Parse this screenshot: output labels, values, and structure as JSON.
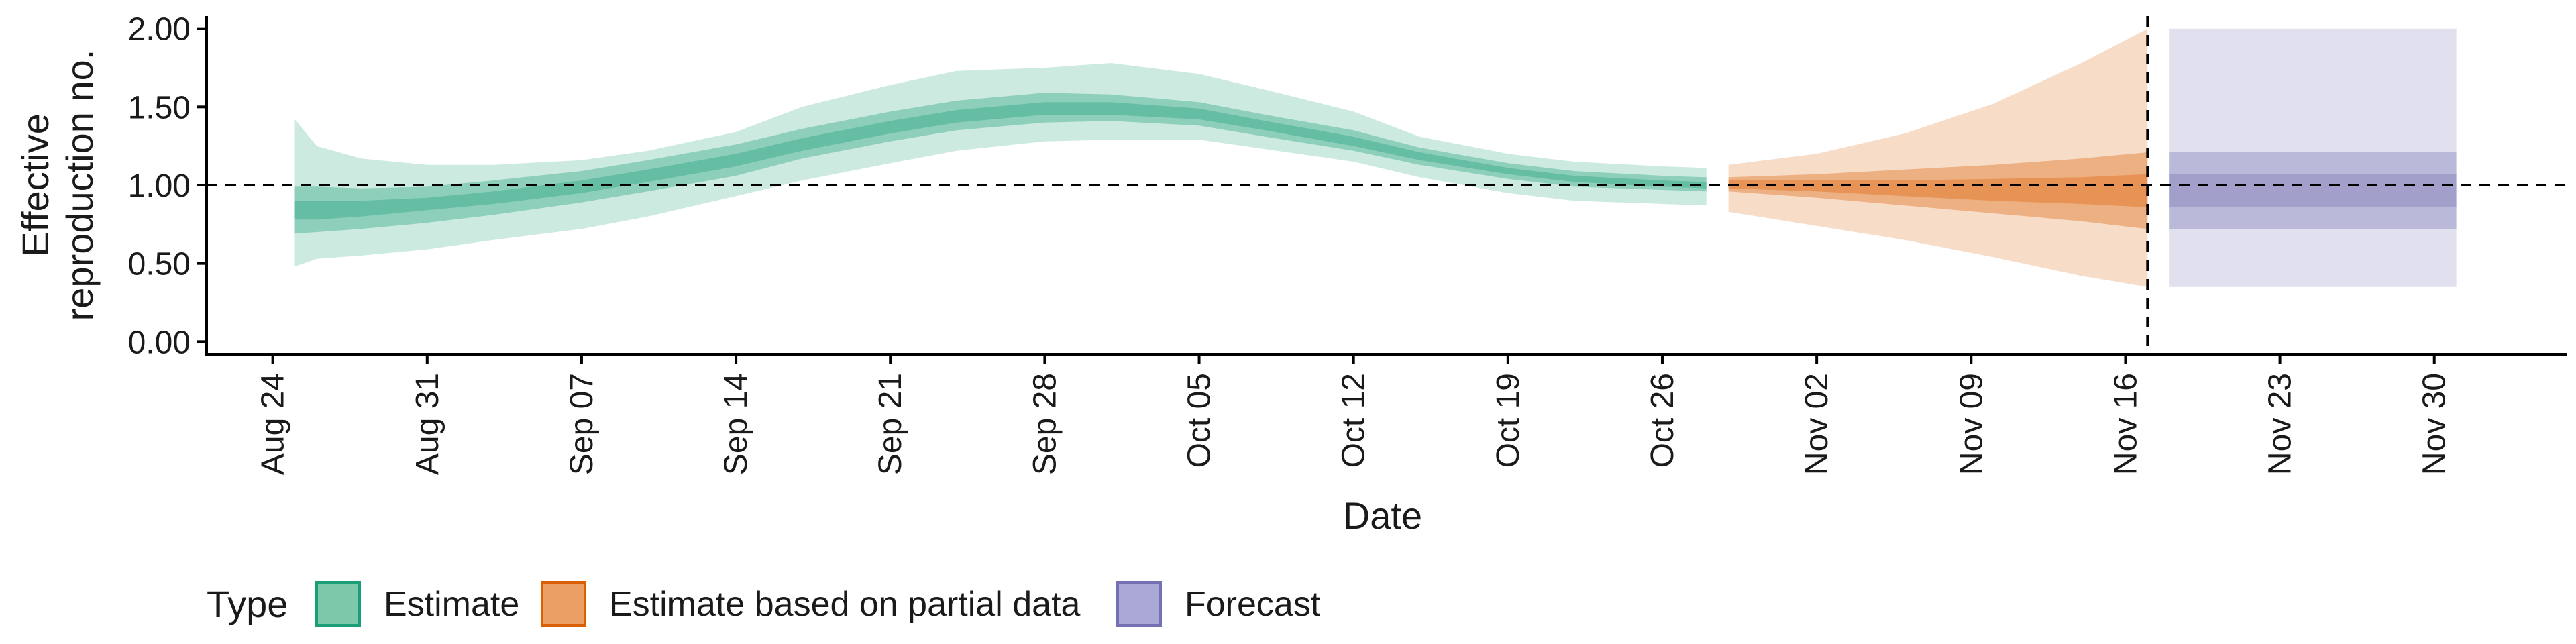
{
  "chart_data": {
    "type": "area",
    "title": "",
    "xlabel": "Date",
    "ylabel_lines": [
      "Effective",
      "reproduction no."
    ],
    "x_range": [
      "2020-08-21",
      "2020-12-06"
    ],
    "ylim": [
      -0.08,
      2.08
    ],
    "y_ticks": [
      "0.00",
      "0.50",
      "1.00",
      "1.50",
      "2.00"
    ],
    "x_tick_labels": [
      {
        "date": "2020-08-24",
        "label": "Aug 24"
      },
      {
        "date": "2020-08-31",
        "label": "Aug 31"
      },
      {
        "date": "2020-09-07",
        "label": "Sep 07"
      },
      {
        "date": "2020-09-14",
        "label": "Sep 14"
      },
      {
        "date": "2020-09-21",
        "label": "Sep 21"
      },
      {
        "date": "2020-09-28",
        "label": "Sep 28"
      },
      {
        "date": "2020-10-05",
        "label": "Oct 05"
      },
      {
        "date": "2020-10-12",
        "label": "Oct 12"
      },
      {
        "date": "2020-10-19",
        "label": "Oct 19"
      },
      {
        "date": "2020-10-26",
        "label": "Oct 26"
      },
      {
        "date": "2020-11-02",
        "label": "Nov 02"
      },
      {
        "date": "2020-11-09",
        "label": "Nov 09"
      },
      {
        "date": "2020-11-16",
        "label": "Nov 16"
      },
      {
        "date": "2020-11-23",
        "label": "Nov 23"
      },
      {
        "date": "2020-11-30",
        "label": "Nov 30"
      }
    ],
    "reference_lines": {
      "horizontal_y": 1.0,
      "vertical_date": "2020-11-17"
    },
    "legend": {
      "title": "Type",
      "placement": "bottom-left",
      "entries": [
        {
          "label": "Estimate",
          "fill": "#7dc7ab",
          "stroke": "#1b9e77"
        },
        {
          "label": "Estimate based on partial data",
          "fill": "#eb9f64",
          "stroke": "#d95f02"
        },
        {
          "label": "Forecast",
          "fill": "#aaa8d4",
          "stroke": "#7570b3"
        }
      ]
    },
    "series": [
      {
        "name": "Estimate",
        "color": "#1b9e77",
        "dates": [
          "2020-08-25",
          "2020-08-26",
          "2020-08-28",
          "2020-08-31",
          "2020-09-03",
          "2020-09-07",
          "2020-09-10",
          "2020-09-14",
          "2020-09-17",
          "2020-09-21",
          "2020-09-24",
          "2020-09-28",
          "2020-10-01",
          "2020-10-05",
          "2020-10-08",
          "2020-10-12",
          "2020-10-15",
          "2020-10-19",
          "2020-10-22",
          "2020-10-26",
          "2020-10-28"
        ],
        "median": [
          0.84,
          0.84,
          0.85,
          0.88,
          0.92,
          0.99,
          1.06,
          1.16,
          1.26,
          1.37,
          1.44,
          1.49,
          1.49,
          1.45,
          1.38,
          1.28,
          1.18,
          1.09,
          1.04,
          1.01,
          1.0
        ],
        "ci50_lower": [
          0.78,
          0.78,
          0.8,
          0.84,
          0.88,
          0.95,
          1.02,
          1.12,
          1.22,
          1.33,
          1.4,
          1.45,
          1.45,
          1.42,
          1.35,
          1.25,
          1.16,
          1.07,
          1.02,
          0.99,
          0.98
        ],
        "ci50_upper": [
          0.9,
          0.9,
          0.9,
          0.92,
          0.96,
          1.03,
          1.1,
          1.2,
          1.3,
          1.41,
          1.48,
          1.53,
          1.53,
          1.49,
          1.41,
          1.31,
          1.21,
          1.11,
          1.06,
          1.03,
          1.02
        ],
        "ci90_lower": [
          0.69,
          0.7,
          0.72,
          0.76,
          0.81,
          0.89,
          0.96,
          1.06,
          1.17,
          1.28,
          1.35,
          1.4,
          1.41,
          1.38,
          1.31,
          1.22,
          1.13,
          1.04,
          0.99,
          0.97,
          0.96
        ],
        "ci90_upper": [
          0.99,
          0.99,
          0.98,
          0.99,
          1.03,
          1.09,
          1.16,
          1.26,
          1.36,
          1.47,
          1.54,
          1.59,
          1.58,
          1.53,
          1.45,
          1.35,
          1.24,
          1.14,
          1.09,
          1.06,
          1.05
        ],
        "ci95_lower": [
          0.48,
          0.53,
          0.55,
          0.59,
          0.65,
          0.72,
          0.8,
          0.93,
          1.03,
          1.14,
          1.22,
          1.28,
          1.29,
          1.29,
          1.23,
          1.15,
          1.05,
          0.95,
          0.9,
          0.88,
          0.87
        ],
        "ci95_upper": [
          1.42,
          1.25,
          1.17,
          1.13,
          1.13,
          1.16,
          1.22,
          1.34,
          1.5,
          1.64,
          1.73,
          1.75,
          1.78,
          1.71,
          1.61,
          1.47,
          1.31,
          1.2,
          1.15,
          1.12,
          1.11
        ]
      },
      {
        "name": "Estimate based on partial data",
        "color": "#d95f02",
        "dates": [
          "2020-10-29",
          "2020-11-02",
          "2020-11-06",
          "2020-11-10",
          "2020-11-14",
          "2020-11-17"
        ],
        "median": [
          1.0,
          0.99,
          0.98,
          0.98,
          0.97,
          0.96
        ],
        "ci50_lower": [
          0.98,
          0.96,
          0.93,
          0.9,
          0.88,
          0.86
        ],
        "ci50_upper": [
          1.03,
          1.03,
          1.03,
          1.04,
          1.05,
          1.07
        ],
        "ci90_lower": [
          0.96,
          0.92,
          0.87,
          0.82,
          0.77,
          0.72
        ],
        "ci90_upper": [
          1.05,
          1.07,
          1.1,
          1.13,
          1.17,
          1.21
        ],
        "ci95_lower": [
          0.83,
          0.74,
          0.65,
          0.54,
          0.42,
          0.35
        ],
        "ci95_upper": [
          1.13,
          1.2,
          1.33,
          1.52,
          1.78,
          2.0
        ]
      },
      {
        "name": "Forecast",
        "color": "#7570b3",
        "dates": [
          "2020-11-18",
          "2020-12-01"
        ],
        "median": [
          0.96,
          0.96
        ],
        "ci50_lower": [
          0.86,
          0.86
        ],
        "ci50_upper": [
          1.07,
          1.07
        ],
        "ci90_lower": [
          0.72,
          0.72
        ],
        "ci90_upper": [
          1.21,
          1.21
        ],
        "ci95_lower": [
          0.35,
          0.35
        ],
        "ci95_upper": [
          2.0,
          2.0
        ]
      }
    ]
  }
}
